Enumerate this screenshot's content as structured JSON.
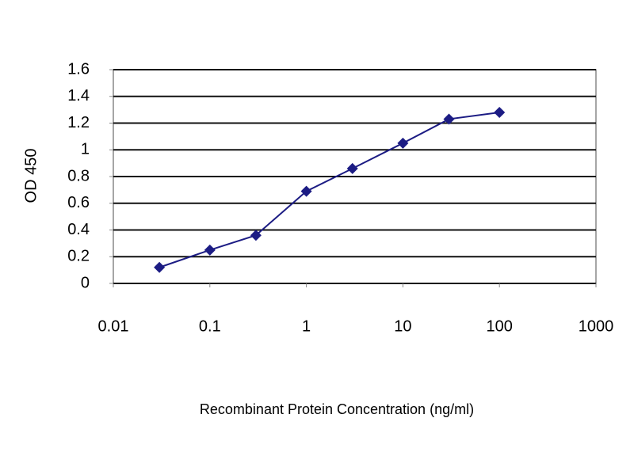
{
  "chart_data": {
    "type": "line",
    "x_label": "Recombinant Protein Concentration (ng/ml)",
    "y_label": "OD 450",
    "x": [
      0.03,
      0.1,
      0.3,
      1,
      3,
      10,
      30,
      100
    ],
    "series": [
      {
        "color": "#1c1c84",
        "values": [
          0.12,
          0.25,
          0.36,
          0.69,
          0.86,
          1.05,
          1.23,
          1.28
        ]
      }
    ],
    "xscale": "log",
    "xlim": [
      0.01,
      1000
    ],
    "xticks": [
      0.01,
      0.1,
      1,
      10,
      100,
      1000
    ],
    "ylim": [
      0,
      1.6
    ],
    "yticks": [
      0,
      0.2,
      0.4,
      0.6,
      0.8,
      1,
      1.2,
      1.4,
      1.6
    ],
    "grid": true
  }
}
